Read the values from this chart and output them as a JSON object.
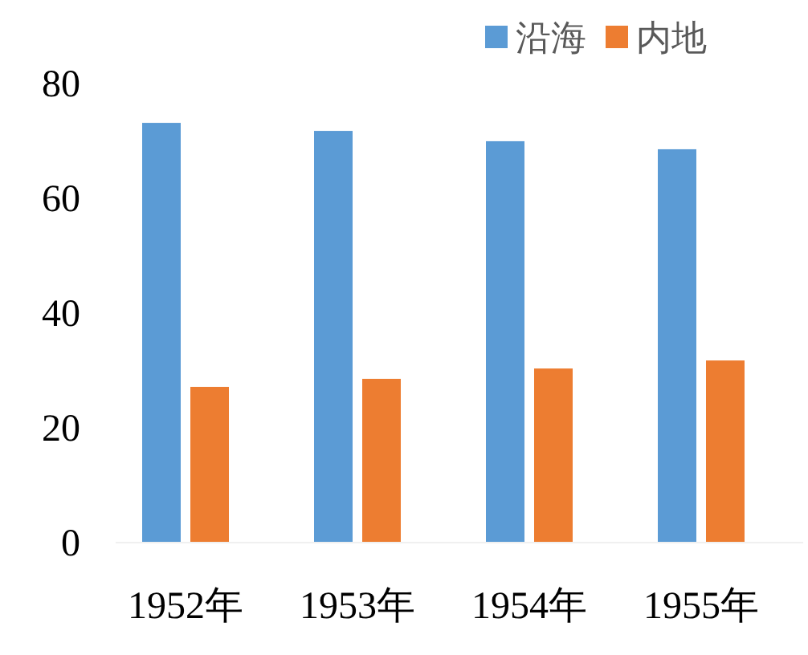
{
  "chart_data": {
    "type": "bar",
    "categories": [
      "1952年",
      "1953年",
      "1954年",
      "1955年"
    ],
    "series": [
      {
        "name": "沿海",
        "color": "#5b9bd5",
        "values": [
          73,
          71.6,
          69.8,
          68.4
        ]
      },
      {
        "name": "内地",
        "color": "#ed7d31",
        "values": [
          27,
          28.4,
          30.2,
          31.6
        ]
      }
    ],
    "ylim": [
      0,
      80
    ],
    "yticks": [
      0,
      20,
      40,
      60,
      80
    ],
    "legend": "top right"
  }
}
